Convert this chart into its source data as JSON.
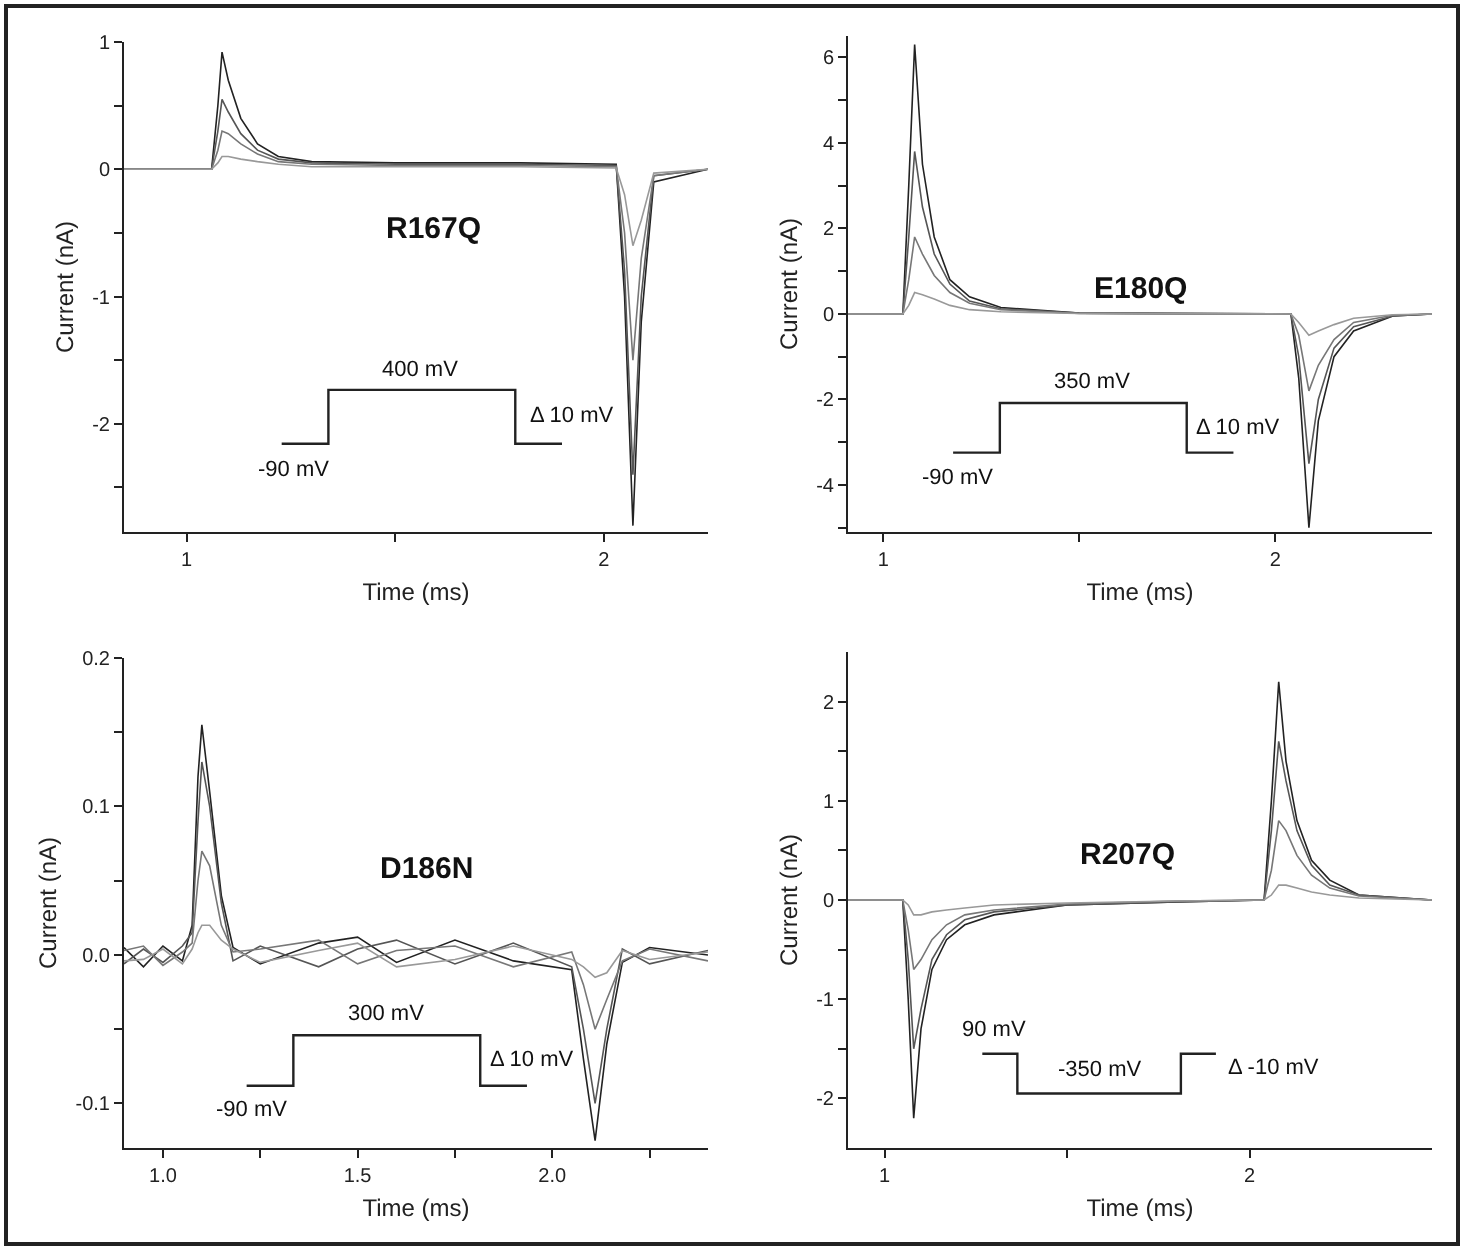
{
  "chart_data": [
    {
      "type": "line",
      "title": "R167Q",
      "xlabel": "Time (ms)",
      "ylabel": "Current (nA)",
      "grid": false,
      "marker": "none",
      "line_style": "solid",
      "annotations": [
        "400 mV",
        "-90 mV",
        "Δ 10 mV"
      ],
      "x": [
        0.85,
        1.0,
        1.06,
        1.075,
        1.085,
        1.1,
        1.13,
        1.17,
        1.22,
        1.3,
        1.5,
        1.8,
        2.03,
        2.05,
        2.07,
        2.09,
        2.12,
        2.25
      ],
      "xlim": [
        0.85,
        2.25
      ],
      "xticks": [
        1,
        {
          "value": 1.5,
          "label": null
        },
        2
      ],
      "ylim": [
        -2.85,
        1
      ],
      "yticks": [
        {
          "value": -2.5,
          "label": null
        },
        -2,
        {
          "value": -1.5,
          "label": null
        },
        -1,
        {
          "value": -0.5,
          "label": null
        },
        0,
        {
          "value": 0.5,
          "label": null
        },
        1
      ],
      "series": [
        {
          "color": "#222222",
          "values": [
            0,
            0,
            0,
            0.5,
            0.92,
            0.7,
            0.4,
            0.2,
            0.1,
            0.06,
            0.05,
            0.05,
            0.04,
            -1.0,
            -2.8,
            -1.2,
            -0.1,
            0
          ]
        },
        {
          "color": "#555555",
          "values": [
            0,
            0,
            0,
            0.3,
            0.55,
            0.45,
            0.28,
            0.15,
            0.08,
            0.05,
            0.04,
            0.04,
            0.03,
            -0.8,
            -2.4,
            -1.0,
            -0.05,
            0
          ]
        },
        {
          "color": "#777777",
          "values": [
            0,
            0,
            0,
            0.15,
            0.3,
            0.28,
            0.2,
            0.12,
            0.06,
            0.04,
            0.03,
            0.03,
            0.02,
            -0.5,
            -1.5,
            -0.7,
            -0.05,
            0
          ]
        },
        {
          "color": "#999999",
          "values": [
            0,
            0,
            0,
            0.05,
            0.1,
            0.1,
            0.08,
            0.06,
            0.04,
            0.02,
            0.02,
            0.02,
            0.01,
            -0.2,
            -0.6,
            -0.4,
            -0.03,
            0
          ]
        }
      ]
    },
    {
      "type": "line",
      "title": "E180Q",
      "xlabel": "Time (ms)",
      "ylabel": "Current (nA)",
      "grid": false,
      "marker": "none",
      "line_style": "solid",
      "annotations": [
        "350 mV",
        "-90 mV",
        "Δ 10 mV"
      ],
      "x": [
        0.91,
        1.0,
        1.05,
        1.065,
        1.08,
        1.1,
        1.13,
        1.17,
        1.22,
        1.3,
        1.5,
        2.04,
        2.06,
        2.086,
        2.11,
        2.15,
        2.2,
        2.3,
        2.4
      ],
      "xlim": [
        0.91,
        2.4
      ],
      "xticks": [
        1,
        {
          "value": 1.5,
          "label": null
        },
        2
      ],
      "ylim": [
        -5.1,
        6.5
      ],
      "yticks": [
        {
          "value": -5,
          "label": null
        },
        -4,
        {
          "value": -3,
          "label": null
        },
        -2,
        {
          "value": -1,
          "label": null
        },
        0,
        {
          "value": 1,
          "label": null
        },
        2,
        {
          "value": 3,
          "label": null
        },
        4,
        {
          "value": 5,
          "label": null
        },
        6
      ],
      "series": [
        {
          "color": "#222222",
          "values": [
            0,
            0,
            0,
            3,
            6.3,
            3.5,
            1.8,
            0.8,
            0.4,
            0.15,
            0.02,
            0,
            -1.5,
            -5.0,
            -2.5,
            -1.0,
            -0.4,
            -0.05,
            0
          ]
        },
        {
          "color": "#555555",
          "values": [
            0,
            0,
            0,
            1.8,
            3.8,
            2.5,
            1.4,
            0.7,
            0.3,
            0.12,
            0.02,
            0,
            -1.0,
            -3.5,
            -2.0,
            -0.8,
            -0.3,
            -0.05,
            0
          ]
        },
        {
          "color": "#777777",
          "values": [
            0,
            0,
            0,
            0.8,
            1.8,
            1.4,
            0.9,
            0.5,
            0.25,
            0.1,
            0.01,
            0,
            -0.5,
            -1.8,
            -1.2,
            -0.6,
            -0.2,
            -0.03,
            0
          ]
        },
        {
          "color": "#999999",
          "values": [
            0,
            0,
            0,
            0.2,
            0.5,
            0.45,
            0.35,
            0.2,
            0.1,
            0.05,
            0.01,
            0,
            -0.2,
            -0.5,
            -0.4,
            -0.25,
            -0.1,
            -0.02,
            0
          ]
        }
      ]
    },
    {
      "type": "line",
      "title": "D186N",
      "xlabel": "Time (ms)",
      "ylabel": "Current (nA)",
      "grid": false,
      "marker": "none",
      "line_style": "solid",
      "annotations": [
        "300 mV",
        "-90 mV",
        "Δ 10 mV"
      ],
      "x": [
        0.9,
        0.95,
        1.0,
        1.05,
        1.075,
        1.09,
        1.1,
        1.12,
        1.15,
        1.18,
        1.25,
        1.4,
        1.5,
        1.6,
        1.75,
        1.9,
        2.05,
        2.08,
        2.11,
        2.14,
        2.18,
        2.25,
        2.4
      ],
      "xlim": [
        0.9,
        2.4
      ],
      "xticks": [
        {
          "value": 1,
          "label": "1.0"
        },
        {
          "value": 1.25,
          "label": null
        },
        1.5,
        {
          "value": 1.75,
          "label": null
        },
        {
          "value": 2,
          "label": "2.0"
        },
        {
          "value": 2.25,
          "label": null
        }
      ],
      "ylim": [
        -0.13,
        0.2
      ],
      "yticks": [
        -0.1,
        {
          "value": -0.05,
          "label": null
        },
        {
          "value": 0,
          "label": "0.0"
        },
        {
          "value": 0.05,
          "label": null
        },
        0.1,
        {
          "value": 0.15,
          "label": null
        },
        0.2
      ],
      "series": [
        {
          "color": "#222222",
          "values": [
            0.005,
            -0.008,
            0.006,
            -0.004,
            0.02,
            0.12,
            0.155,
            0.11,
            0.04,
            0.005,
            -0.006,
            0.008,
            0.012,
            -0.005,
            0.01,
            -0.004,
            -0.01,
            -0.07,
            -0.125,
            -0.06,
            -0.005,
            0.005,
            0
          ]
        },
        {
          "color": "#555555",
          "values": [
            -0.006,
            0.004,
            -0.005,
            0.006,
            0.015,
            0.09,
            0.13,
            0.1,
            0.035,
            -0.004,
            0.006,
            -0.008,
            0.004,
            0.01,
            -0.006,
            0.008,
            -0.008,
            -0.05,
            -0.1,
            -0.05,
            0.004,
            -0.006,
            0.003
          ]
        },
        {
          "color": "#777777",
          "values": [
            0.003,
            0.006,
            -0.007,
            0.002,
            0.008,
            0.05,
            0.07,
            0.06,
            0.02,
            0.002,
            0.004,
            0.01,
            -0.006,
            0.003,
            0.006,
            -0.008,
            0.002,
            -0.02,
            -0.05,
            -0.03,
            -0.004,
            0.004,
            -0.004
          ]
        },
        {
          "color": "#999999",
          "values": [
            -0.004,
            -0.003,
            0.004,
            -0.006,
            0.004,
            0.015,
            0.02,
            0.02,
            0.01,
            0.004,
            -0.005,
            0.003,
            0.008,
            -0.008,
            -0.003,
            0.006,
            -0.003,
            -0.008,
            -0.015,
            -0.012,
            0.003,
            -0.003,
            0.002
          ]
        }
      ]
    },
    {
      "type": "line",
      "title": "R207Q",
      "xlabel": "Time (ms)",
      "ylabel": "Current (nA)",
      "grid": false,
      "marker": "none",
      "line_style": "solid",
      "annotations": [
        "90 mV",
        "-350 mV",
        "Δ -10 mV"
      ],
      "x": [
        0.9,
        1.0,
        1.05,
        1.065,
        1.08,
        1.1,
        1.13,
        1.17,
        1.22,
        1.3,
        1.5,
        1.8,
        2.04,
        2.06,
        2.08,
        2.1,
        2.13,
        2.17,
        2.22,
        2.3,
        2.5
      ],
      "xlim": [
        0.9,
        2.5
      ],
      "xticks": [
        1,
        {
          "value": 1.5,
          "label": null
        },
        2
      ],
      "ylim": [
        -2.5,
        2.5
      ],
      "yticks": [
        -2,
        {
          "value": -1.5,
          "label": null
        },
        -1,
        {
          "value": -0.5,
          "label": null
        },
        0,
        {
          "value": 0.5,
          "label": null
        },
        1,
        {
          "value": 1.5,
          "label": null
        },
        2
      ],
      "series": [
        {
          "color": "#222222",
          "values": [
            0,
            0,
            0,
            -1.0,
            -2.2,
            -1.3,
            -0.7,
            -0.4,
            -0.25,
            -0.15,
            -0.05,
            -0.02,
            0,
            1.0,
            2.2,
            1.4,
            0.8,
            0.4,
            0.2,
            0.05,
            0
          ]
        },
        {
          "color": "#555555",
          "values": [
            0,
            0,
            0,
            -0.6,
            -1.5,
            -1.1,
            -0.6,
            -0.35,
            -0.2,
            -0.12,
            -0.05,
            -0.02,
            0,
            0.7,
            1.6,
            1.2,
            0.7,
            0.35,
            0.15,
            0.05,
            0
          ]
        },
        {
          "color": "#777777",
          "values": [
            0,
            0,
            0,
            -0.3,
            -0.7,
            -0.6,
            -0.4,
            -0.25,
            -0.15,
            -0.1,
            -0.04,
            -0.01,
            0,
            0.3,
            0.8,
            0.7,
            0.45,
            0.25,
            0.12,
            0.04,
            0
          ]
        },
        {
          "color": "#999999",
          "values": [
            0,
            0,
            0,
            -0.05,
            -0.15,
            -0.15,
            -0.12,
            -0.1,
            -0.08,
            -0.05,
            -0.03,
            -0.01,
            0,
            0.05,
            0.15,
            0.15,
            0.12,
            0.08,
            0.05,
            0.02,
            0
          ]
        }
      ]
    }
  ]
}
